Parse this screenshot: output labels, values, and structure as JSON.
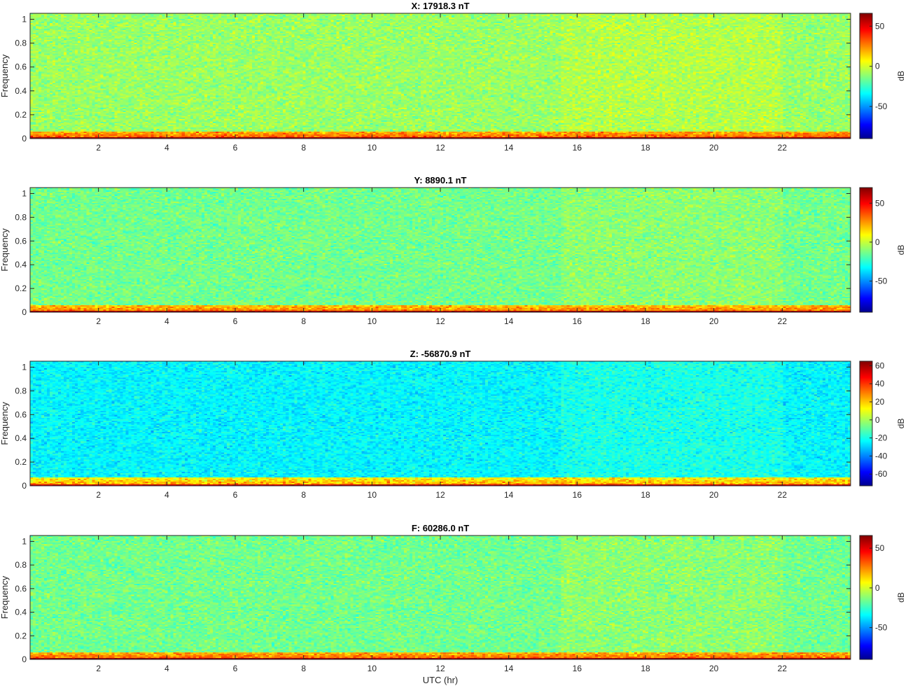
{
  "chart_data": [
    {
      "type": "heatmap",
      "title": "X: 17918.3 nT",
      "xlabel": "",
      "ylabel": "Frequency",
      "xlim": [
        0,
        24
      ],
      "ylim": [
        0,
        1.05
      ],
      "xticks": [
        "2",
        "4",
        "6",
        "8",
        "10",
        "12",
        "14",
        "16",
        "18",
        "20",
        "22"
      ],
      "yticks": [
        "0",
        "0.2",
        "0.4",
        "0.6",
        "0.8",
        "1"
      ],
      "colorbar": {
        "label": "dB",
        "range": [
          -90,
          66
        ],
        "ticks": [
          "50",
          "0",
          "-50"
        ]
      },
      "profile": {
        "background_db": -8,
        "low_band_db": 32,
        "base_db": 62,
        "band_top_freq": 0.055,
        "noise_db": 14
      }
    },
    {
      "type": "heatmap",
      "title": "Y: 8890.1 nT",
      "xlabel": "",
      "ylabel": "Frequency",
      "xlim": [
        0,
        24
      ],
      "ylim": [
        0,
        1.05
      ],
      "xticks": [
        "2",
        "4",
        "6",
        "8",
        "10",
        "12",
        "14",
        "16",
        "18",
        "20",
        "22"
      ],
      "yticks": [
        "0",
        "0.2",
        "0.4",
        "0.6",
        "0.8",
        "1"
      ],
      "colorbar": {
        "label": "dB",
        "range": [
          -90,
          70
        ],
        "ticks": [
          "50",
          "0",
          "-50"
        ]
      },
      "profile": {
        "background_db": -12,
        "low_band_db": 30,
        "base_db": 64,
        "band_top_freq": 0.06,
        "noise_db": 14
      }
    },
    {
      "type": "heatmap",
      "title": "Z: -56870.9 nT",
      "xlabel": "",
      "ylabel": "Frequency",
      "xlim": [
        0,
        24
      ],
      "ylim": [
        0,
        1.05
      ],
      "xticks": [
        "2",
        "4",
        "6",
        "8",
        "10",
        "12",
        "14",
        "16",
        "18",
        "20",
        "22"
      ],
      "yticks": [
        "0",
        "0.2",
        "0.4",
        "0.6",
        "0.8",
        "1"
      ],
      "colorbar": {
        "label": "dB",
        "range": [
          -73,
          65
        ],
        "ticks": [
          "60",
          "40",
          "20",
          "0",
          "-20",
          "-40",
          "-60"
        ]
      },
      "profile": {
        "background_db": -22,
        "low_band_db": 25,
        "base_db": 55,
        "band_top_freq": 0.065,
        "noise_db": 12
      }
    },
    {
      "type": "heatmap",
      "title": "F: 60286.0 nT",
      "xlabel": "UTC (hr)",
      "ylabel": "Frequency",
      "xlim": [
        0,
        24
      ],
      "ylim": [
        0,
        1.05
      ],
      "xticks": [
        "2",
        "4",
        "6",
        "8",
        "10",
        "12",
        "14",
        "16",
        "18",
        "20",
        "22"
      ],
      "yticks": [
        "0",
        "0.2",
        "0.4",
        "0.6",
        "0.8",
        "1"
      ],
      "colorbar": {
        "label": "dB",
        "range": [
          -90,
          66
        ],
        "ticks": [
          "50",
          "0",
          "-50"
        ]
      },
      "profile": {
        "background_db": -14,
        "low_band_db": 30,
        "base_db": 62,
        "band_top_freq": 0.06,
        "noise_db": 14
      }
    }
  ]
}
